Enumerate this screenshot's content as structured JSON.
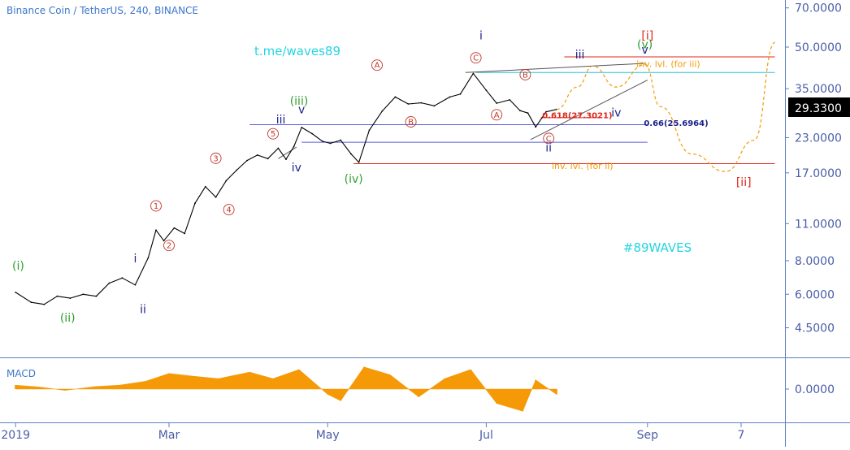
{
  "symbol_title": "Binance Coin / TetherUS, 240, BINANCE",
  "watermark_top": "t.me/waves89",
  "watermark_bottom": "#89WAVES",
  "price_badge": "29.3300",
  "macd_label": "MACD",
  "colors": {
    "axis": "#5b7fc4",
    "price_line": "#000000",
    "macd_fill": "#f59a06",
    "forecast": "#f59a06",
    "red_level": "#e0261b",
    "cyan_level": "#26c6da",
    "blue_level": "#5b5bd6",
    "watermark": "#26d4e0",
    "wave_green": "#2ca02c",
    "wave_navy": "#1b1f8a",
    "wave_red": "#c0392b"
  },
  "chart_data": {
    "type": "line",
    "title": "Binance Coin / TetherUS, 240, BINANCE",
    "y_scale": "log",
    "ylim": [
      2.8,
      85
    ],
    "y_ticks": [
      "70.0000",
      "50.0000",
      "35.0000",
      "23.0000",
      "17.0000",
      "11.0000",
      "8.0000",
      "6.0000",
      "4.5000"
    ],
    "x_ticks": [
      "2019",
      "Mar",
      "May",
      "Jul",
      "Sep",
      "7"
    ],
    "last_price": 29.33,
    "series": [
      {
        "x": [
          "2019-01-01",
          "2019-01-07",
          "2019-01-12",
          "2019-01-17",
          "2019-01-22",
          "2019-01-27",
          "2019-02-01",
          "2019-02-06",
          "2019-02-11",
          "2019-02-16",
          "2019-02-21",
          "2019-02-24",
          "2019-02-27",
          "2019-03-03",
          "2019-03-07",
          "2019-03-11",
          "2019-03-15",
          "2019-03-19",
          "2019-03-23",
          "2019-03-27",
          "2019-03-31",
          "2019-04-04",
          "2019-04-08",
          "2019-04-12",
          "2019-04-15",
          "2019-04-18",
          "2019-04-21",
          "2019-04-25",
          "2019-04-29",
          "2019-05-02",
          "2019-05-06",
          "2019-05-10",
          "2019-05-13",
          "2019-05-17",
          "2019-05-22",
          "2019-05-27",
          "2019-06-01",
          "2019-06-06",
          "2019-06-11",
          "2019-06-17",
          "2019-06-21",
          "2019-06-26",
          "2019-07-01",
          "2019-07-05",
          "2019-07-10",
          "2019-07-14",
          "2019-07-17",
          "2019-07-20",
          "2019-07-24",
          "2019-07-28"
        ],
        "values": [
          6.1,
          5.6,
          5.5,
          5.9,
          5.8,
          6.0,
          5.9,
          6.6,
          6.9,
          6.5,
          8.2,
          10.4,
          9.5,
          10.6,
          10.1,
          13.1,
          15.1,
          13.8,
          15.9,
          17.4,
          18.9,
          19.8,
          19.2,
          21.0,
          19.1,
          21.3,
          25.1,
          23.8,
          22.3,
          21.9,
          22.5,
          20.0,
          18.6,
          24.5,
          28.9,
          32.6,
          30.7,
          31.0,
          30.2,
          32.6,
          33.4,
          39.9,
          34.5,
          30.9,
          31.8,
          29.0,
          28.4,
          25.2,
          28.7,
          29.3
        ]
      }
    ],
    "macd_series": {
      "x": [
        "2019-01-01",
        "2019-01-10",
        "2019-01-20",
        "2019-02-01",
        "2019-02-10",
        "2019-02-20",
        "2019-03-01",
        "2019-03-10",
        "2019-03-20",
        "2019-04-01",
        "2019-04-10",
        "2019-04-20",
        "2019-05-01",
        "2019-05-06",
        "2019-05-15",
        "2019-05-25",
        "2019-06-05",
        "2019-06-15",
        "2019-06-25",
        "2019-07-05",
        "2019-07-15",
        "2019-07-20",
        "2019-07-28"
      ],
      "values": [
        0.15,
        0.08,
        -0.05,
        0.1,
        0.15,
        0.3,
        0.6,
        0.5,
        0.4,
        0.65,
        0.4,
        0.75,
        -0.2,
        -0.45,
        0.85,
        0.55,
        -0.3,
        0.4,
        0.75,
        -0.55,
        -0.85,
        0.35,
        -0.2
      ]
    },
    "horizontal_levels": [
      {
        "price": 46.0,
        "color": "red",
        "x_start": "2019-07-31",
        "x_end": "2019-10-20"
      },
      {
        "price": 40.2,
        "color": "cyan",
        "x_start": "2019-06-27",
        "x_end": "2019-10-20"
      },
      {
        "price": 27.3,
        "color": "red",
        "x_start": "2019-07-22",
        "x_end": "2019-08-13"
      },
      {
        "price": 25.7,
        "color": "blue",
        "x_start": "2019-04-01",
        "x_end": "2019-09-01"
      },
      {
        "price": 22.1,
        "color": "blue",
        "x_start": "2019-04-21",
        "x_end": "2019-09-01"
      },
      {
        "price": 18.4,
        "color": "red",
        "x_start": "2019-05-11",
        "x_end": "2019-10-20"
      }
    ],
    "trend_lines": [
      {
        "x1": "2019-04-12",
        "y1": 19.2,
        "x2": "2019-04-19",
        "y2": 21.2
      },
      {
        "x1": "2019-06-23",
        "y1": 40.2,
        "x2": "2019-08-31",
        "y2": 43.5
      },
      {
        "x1": "2019-07-18",
        "y1": 22.6,
        "x2": "2019-09-01",
        "y2": 37.7
      }
    ],
    "forecast_path": {
      "x": [
        "2019-07-28",
        "2019-08-05",
        "2019-08-11",
        "2019-08-20",
        "2019-08-31",
        "2019-09-06",
        "2019-09-18",
        "2019-10-01",
        "2019-10-12",
        "2019-10-20"
      ],
      "values": [
        29.3,
        35.5,
        42.5,
        35.5,
        43.0,
        30.0,
        20.0,
        17.2,
        22.5,
        52.0
      ]
    },
    "annotations": [
      {
        "text": "(i)",
        "x": "2019-01-02",
        "y": 7.4,
        "style": "green"
      },
      {
        "text": "(ii)",
        "x": "2019-01-21",
        "y": 4.75,
        "style": "green"
      },
      {
        "text": "(iii)",
        "x": "2019-04-20",
        "y": 30.5,
        "style": "green"
      },
      {
        "text": "(iv)",
        "x": "2019-05-11",
        "y": 15.6,
        "style": "green"
      },
      {
        "text": "(v)",
        "x": "2019-08-31",
        "y": 49.5,
        "style": "green"
      },
      {
        "text": "i",
        "x": "2019-02-16",
        "y": 7.9,
        "style": "navy"
      },
      {
        "text": "ii",
        "x": "2019-02-19",
        "y": 5.1,
        "style": "navy"
      },
      {
        "text": "iii",
        "x": "2019-04-13",
        "y": 26.0,
        "style": "navy"
      },
      {
        "text": "iv",
        "x": "2019-04-19",
        "y": 17.2,
        "style": "navy"
      },
      {
        "text": "v",
        "x": "2019-04-21",
        "y": 28.3,
        "style": "navy"
      },
      {
        "text": "i",
        "x": "2019-06-29",
        "y": 53.5,
        "style": "navy"
      },
      {
        "text": "ii",
        "x": "2019-07-25",
        "y": 20.4,
        "style": "navy"
      },
      {
        "text": "iii",
        "x": "2019-08-06",
        "y": 45.3,
        "style": "navy"
      },
      {
        "text": "iv",
        "x": "2019-08-20",
        "y": 27.6,
        "style": "navy"
      },
      {
        "text": "v",
        "x": "2019-08-31",
        "y": 47.3,
        "style": "navy"
      },
      {
        "text": "1",
        "x": "2019-02-24",
        "y": 12.5,
        "style": "circle"
      },
      {
        "text": "2",
        "x": "2019-03-01",
        "y": 8.9,
        "style": "circle"
      },
      {
        "text": "3",
        "x": "2019-03-19",
        "y": 18.8,
        "style": "circle"
      },
      {
        "text": "4",
        "x": "2019-03-24",
        "y": 12.1,
        "style": "circle"
      },
      {
        "text": "5",
        "x": "2019-04-10",
        "y": 23.2,
        "style": "circle"
      },
      {
        "text": "A",
        "x": "2019-05-20",
        "y": 41.8,
        "style": "circle"
      },
      {
        "text": "B",
        "x": "2019-06-02",
        "y": 25.7,
        "style": "circle"
      },
      {
        "text": "C",
        "x": "2019-06-27",
        "y": 44.5,
        "style": "circle"
      },
      {
        "text": "A",
        "x": "2019-07-05",
        "y": 27.3,
        "style": "circle"
      },
      {
        "text": "B",
        "x": "2019-07-16",
        "y": 38.5,
        "style": "circle"
      },
      {
        "text": "C",
        "x": "2019-07-25",
        "y": 22.3,
        "style": "circle"
      },
      {
        "text": "[i]",
        "x": "2019-09-01",
        "y": 53.5,
        "style": "red-bracket"
      },
      {
        "text": "[ii]",
        "x": "2019-10-08",
        "y": 15.2,
        "style": "red-bracket"
      },
      {
        "text": "inv. lvl. (for iii)",
        "x": "2019-09-09",
        "y": 42.2,
        "style": "orange"
      },
      {
        "text": "inv. lvl. (for ii)",
        "x": "2019-08-07",
        "y": 17.55,
        "style": "orange"
      },
      {
        "text": "0.618(27.3021)",
        "x": "2019-08-05",
        "y": 27.2,
        "style": "red-small"
      },
      {
        "text": "0.66(25.6964)",
        "x": "2019-09-12",
        "y": 25.4,
        "style": "blue-small"
      }
    ]
  }
}
